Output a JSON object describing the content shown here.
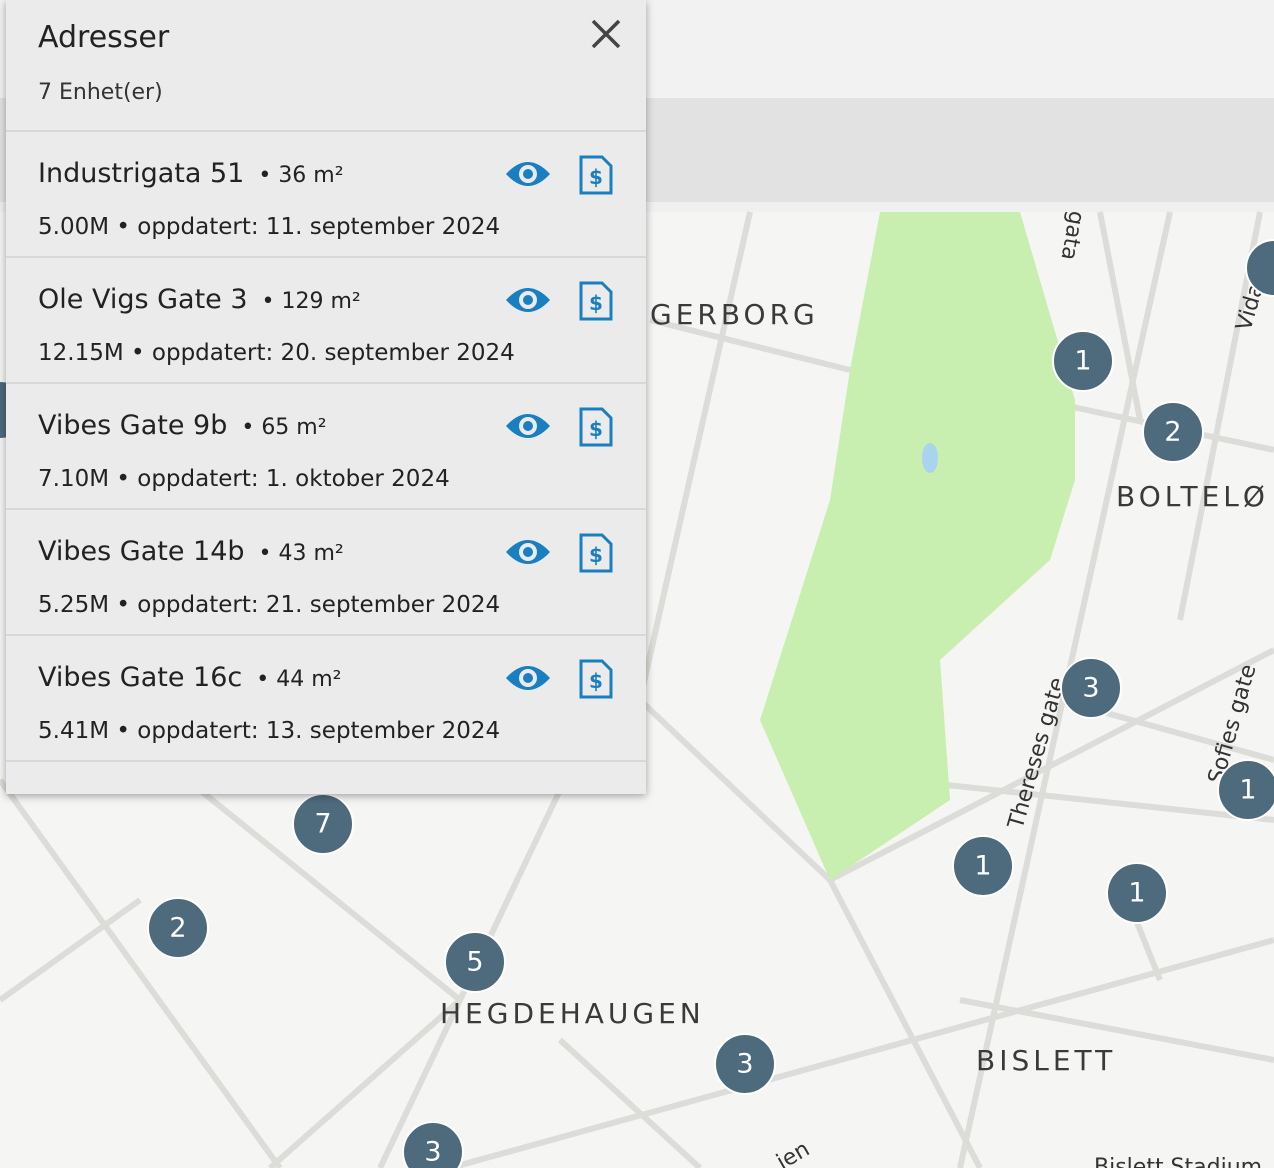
{
  "panel": {
    "title": "Adresser",
    "count": "7 Enhet(er)",
    "items": [
      {
        "address": "Industrigata 51",
        "area": "• 36 m²",
        "price": "5.00M",
        "updated": "• oppdatert: 11. september 2024"
      },
      {
        "address": "Ole Vigs Gate 3",
        "area": "• 129 m²",
        "price": "12.15M",
        "updated": "• oppdatert: 20. september 2024"
      },
      {
        "address": "Vibes Gate 9b",
        "area": "• 65 m²",
        "price": "7.10M",
        "updated": "• oppdatert: 1. oktober 2024"
      },
      {
        "address": "Vibes Gate 14b",
        "area": "• 43 m²",
        "price": "5.25M",
        "updated": "• oppdatert: 21. september 2024"
      },
      {
        "address": "Vibes Gate 16c",
        "area": "• 44 m²",
        "price": "5.41M",
        "updated": "• oppdatert: 13. september 2024"
      }
    ]
  },
  "map": {
    "areas": [
      "GERBORG",
      "BOLTELØ",
      "HEGDEHAUGEN",
      "BISLETT"
    ],
    "streets": [
      "Thereses gate",
      "Sofies gate",
      "gata",
      "Vidars",
      "Bislett Stadium",
      "ien"
    ],
    "clusters": [
      "1",
      "2",
      "3",
      "1",
      "1",
      "1",
      "7",
      "2",
      "5",
      "3",
      "3"
    ]
  }
}
